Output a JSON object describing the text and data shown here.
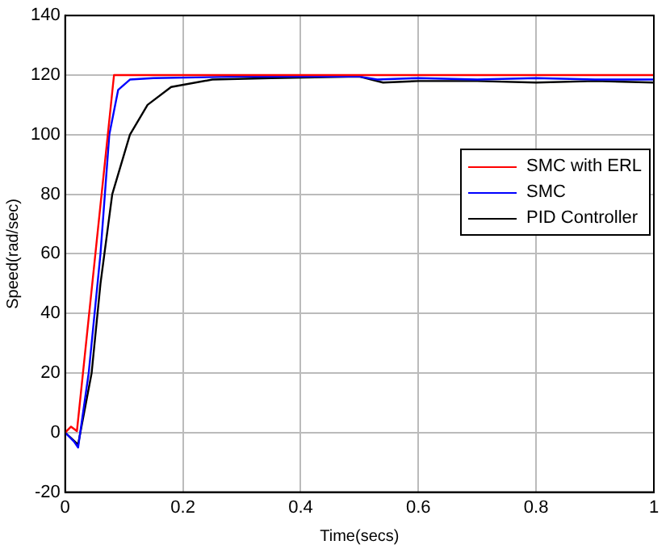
{
  "chart_data": {
    "type": "line",
    "xlabel": "Time(secs)",
    "ylabel": "Speed(rad/sec)",
    "xlim": [
      0,
      1
    ],
    "xticks": [
      0,
      0.2,
      0.4,
      0.6,
      0.8,
      1
    ],
    "ylim": [
      -20,
      140
    ],
    "yticks": [
      -20,
      0,
      20,
      40,
      60,
      80,
      100,
      120,
      140
    ],
    "grid": true,
    "legend": "right",
    "marker": "none",
    "line_style": "solid",
    "series": [
      {
        "name": "SMC with ERL",
        "color": "#ff0000",
        "x": [
          0,
          0.01,
          0.02,
          0.083,
          0.2,
          0.4,
          0.6,
          0.8,
          1
        ],
        "values": [
          0,
          2,
          0.5,
          120,
          120,
          120,
          120,
          120,
          120
        ]
      },
      {
        "name": "SMC",
        "color": "#0000ff",
        "x": [
          0,
          0.015,
          0.022,
          0.04,
          0.06,
          0.075,
          0.09,
          0.11,
          0.15,
          0.3,
          0.5,
          0.53,
          0.6,
          0.7,
          0.8,
          0.9,
          1
        ],
        "values": [
          0,
          -3,
          -5,
          20,
          60,
          100,
          115,
          118.5,
          119,
          119.5,
          119.5,
          118.5,
          119,
          118.5,
          119,
          118.5,
          118.5
        ]
      },
      {
        "name": "PID Controller",
        "color": "#000000",
        "x": [
          0,
          0.022,
          0.045,
          0.06,
          0.08,
          0.11,
          0.14,
          0.18,
          0.25,
          0.35,
          0.5,
          0.54,
          0.6,
          0.7,
          0.8,
          0.9,
          1
        ],
        "values": [
          0,
          -4,
          20,
          50,
          80,
          100,
          110,
          116,
          118.5,
          119,
          119.5,
          117.5,
          118,
          118,
          117.5,
          118,
          117.5
        ]
      }
    ]
  }
}
